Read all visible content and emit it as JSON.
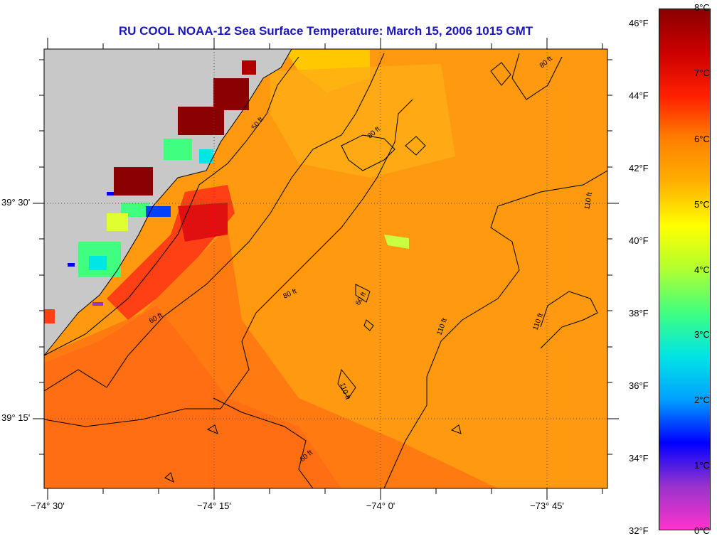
{
  "title": "RU COOL  NOAA-12  Sea Surface Temperature:  March 15, 2006 1015 GMT",
  "lat_labels": [
    "39° 30'",
    "39° 15'"
  ],
  "lon_labels": [
    "−74° 30'",
    "−74° 15'",
    "−74° 0'",
    "−73° 45'"
  ],
  "colorbar": {
    "fahrenheit_labels": [
      "46°F",
      "44°F",
      "42°F",
      "40°F",
      "38°F",
      "36°F",
      "34°F",
      "32°F"
    ],
    "celsius_labels": [
      "8°C",
      "7°C",
      "6°C",
      "5°C",
      "4°C",
      "3°C",
      "2°C",
      "1°C",
      "0°C"
    ],
    "colors": [
      "#ff33cc",
      "#9933cc",
      "#0000ff",
      "#00a0ff",
      "#00e5e5",
      "#40ff80",
      "#b0ff30",
      "#ffff00",
      "#ffb000",
      "#ff8000",
      "#ff2000",
      "#cc0000",
      "#8b0000"
    ]
  },
  "contour_labels": [
    "50 ft",
    "60 ft",
    "60 ft",
    "80 ft",
    "80 ft",
    "80 ft",
    "60 ft",
    "110 ft",
    "110 ft",
    "110 ft",
    "110 ft"
  ],
  "colors": {
    "land": "#c8c8c8",
    "ocean": "#ff9a10",
    "title": "#1a16b8"
  }
}
